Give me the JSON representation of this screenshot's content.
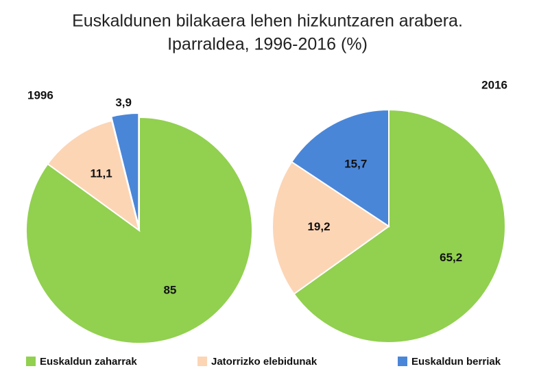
{
  "title": "Euskaldunen bilakaera lehen hizkuntzaren  arabera.",
  "subtitle": "Iparraldea, 1996-2016 (%)",
  "chart_data": [
    {
      "type": "pie",
      "title": "1996",
      "categories": [
        "Euskaldun zaharrak",
        "Jatorrizko elebidunak",
        "Euskaldun berriak"
      ],
      "colors": [
        "#92d050",
        "#fcd5b5",
        "#4a86d8"
      ],
      "values": [
        85,
        11.1,
        3.9
      ],
      "value_labels": [
        "85",
        "11,1",
        "3,9"
      ]
    },
    {
      "type": "pie",
      "title": "2016",
      "categories": [
        "Euskaldun zaharrak",
        "Jatorrizko elebidunak",
        "Euskaldun berriak"
      ],
      "colors": [
        "#92d050",
        "#fcd5b5",
        "#4a86d8"
      ],
      "values": [
        65.2,
        19.2,
        15.7
      ],
      "value_labels": [
        "65,2",
        "19,2",
        "15,7"
      ]
    }
  ]
}
